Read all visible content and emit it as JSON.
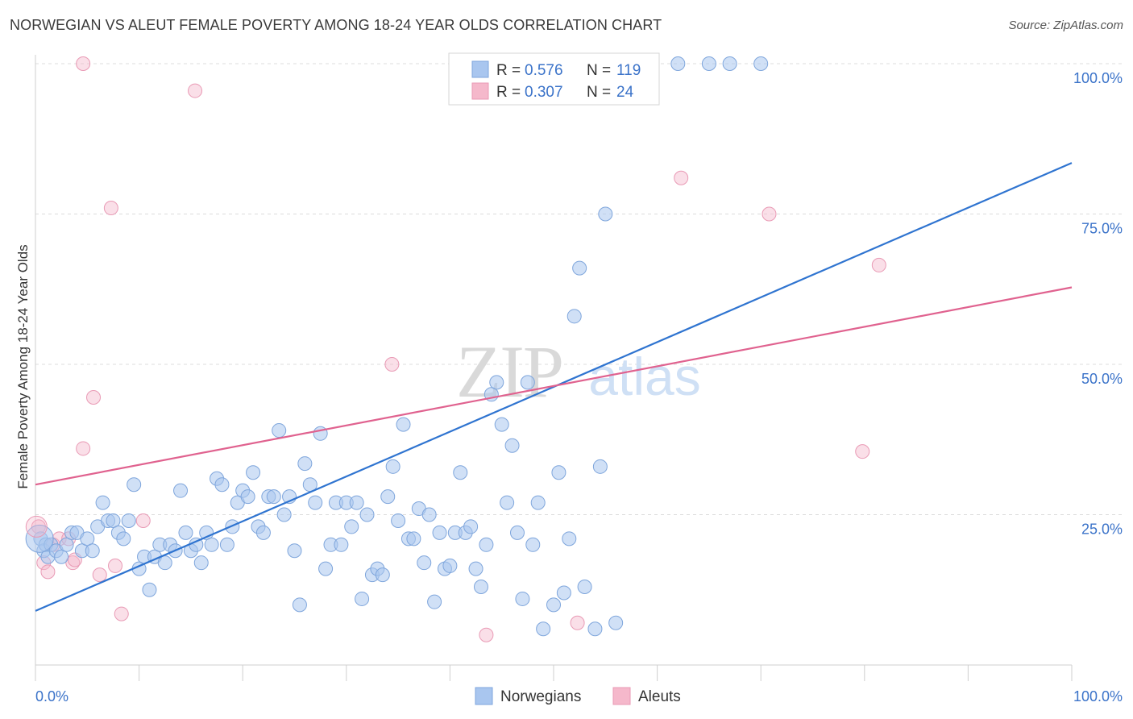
{
  "title": "NORWEGIAN VS ALEUT FEMALE POVERTY AMONG 18-24 YEAR OLDS CORRELATION CHART",
  "source": "Source: ZipAtlas.com",
  "watermark": {
    "zip": "ZIP",
    "atlas": "atlas"
  },
  "chart_data": {
    "type": "scatter",
    "ylabel": "Female Poverty Among 18-24 Year Olds",
    "xlim": [
      0,
      100
    ],
    "ylim": [
      0,
      100
    ],
    "x_tick_labels": [
      "0.0%",
      "100.0%"
    ],
    "y_ticks": [
      25,
      50,
      75,
      100
    ],
    "y_tick_labels": [
      "25.0%",
      "50.0%",
      "75.0%",
      "100.0%"
    ],
    "grid": true,
    "legend_position": "top-center",
    "colors": {
      "norwegians": "#a9c6ef",
      "norwegians_line": "#2f74d0",
      "aleuts": "#f5b8cb",
      "aleuts_line": "#e0628f",
      "accent_text": "#3b73c9"
    },
    "series": [
      {
        "name": "Norwegians",
        "R": "0.576",
        "N": "119",
        "trendline": {
          "x": [
            0,
            100
          ],
          "y": [
            9.0,
            83.5
          ]
        },
        "points": [
          [
            0.5,
            21
          ],
          [
            0.8,
            19
          ],
          [
            1.0,
            20
          ],
          [
            1.2,
            18
          ],
          [
            1.5,
            20
          ],
          [
            2,
            19
          ],
          [
            2.5,
            18
          ],
          [
            3,
            20
          ],
          [
            3.5,
            22
          ],
          [
            4,
            22
          ],
          [
            4.5,
            19
          ],
          [
            5,
            21
          ],
          [
            5.5,
            19
          ],
          [
            6,
            23
          ],
          [
            6.5,
            27
          ],
          [
            7,
            24
          ],
          [
            7.5,
            24
          ],
          [
            8,
            22
          ],
          [
            8.5,
            21
          ],
          [
            9,
            24
          ],
          [
            9.5,
            30
          ],
          [
            10,
            16
          ],
          [
            10.5,
            18
          ],
          [
            11,
            12.5
          ],
          [
            11.5,
            18
          ],
          [
            12,
            20
          ],
          [
            12.5,
            17
          ],
          [
            13,
            20
          ],
          [
            13.5,
            19
          ],
          [
            14,
            29
          ],
          [
            14.5,
            22
          ],
          [
            15,
            19
          ],
          [
            15.5,
            20
          ],
          [
            16,
            17
          ],
          [
            16.5,
            22
          ],
          [
            17,
            20
          ],
          [
            17.5,
            31
          ],
          [
            18,
            30
          ],
          [
            18.5,
            20
          ],
          [
            19,
            23
          ],
          [
            19.5,
            27
          ],
          [
            20,
            29
          ],
          [
            20.5,
            28
          ],
          [
            21,
            32
          ],
          [
            21.5,
            23
          ],
          [
            22,
            22
          ],
          [
            22.5,
            28
          ],
          [
            23,
            28
          ],
          [
            23.5,
            39
          ],
          [
            24,
            25
          ],
          [
            24.5,
            28
          ],
          [
            25,
            19
          ],
          [
            25.5,
            10
          ],
          [
            26,
            33.5
          ],
          [
            26.5,
            30
          ],
          [
            27,
            27
          ],
          [
            27.5,
            38.5
          ],
          [
            28,
            16
          ],
          [
            28.5,
            20
          ],
          [
            29,
            27
          ],
          [
            29.5,
            20
          ],
          [
            30,
            27
          ],
          [
            30.5,
            23
          ],
          [
            31,
            27
          ],
          [
            31.5,
            11
          ],
          [
            32,
            25
          ],
          [
            32.5,
            15
          ],
          [
            33,
            16
          ],
          [
            33.5,
            15
          ],
          [
            34,
            28
          ],
          [
            34.5,
            33
          ],
          [
            35,
            24
          ],
          [
            35.5,
            40
          ],
          [
            36,
            21
          ],
          [
            36.5,
            21
          ],
          [
            37,
            26
          ],
          [
            37.5,
            17
          ],
          [
            38,
            25
          ],
          [
            38.5,
            10.5
          ],
          [
            39,
            22
          ],
          [
            39.5,
            16
          ],
          [
            40,
            16.5
          ],
          [
            40.5,
            22
          ],
          [
            41,
            32
          ],
          [
            41.5,
            22
          ],
          [
            42,
            23
          ],
          [
            42.5,
            16
          ],
          [
            43,
            13
          ],
          [
            43.5,
            20
          ],
          [
            44,
            45
          ],
          [
            44.5,
            47
          ],
          [
            45,
            40
          ],
          [
            45.5,
            27
          ],
          [
            46,
            36.5
          ],
          [
            46.5,
            22
          ],
          [
            47,
            11
          ],
          [
            47.5,
            47
          ],
          [
            48,
            20
          ],
          [
            48.5,
            27
          ],
          [
            49,
            6
          ],
          [
            50,
            10
          ],
          [
            50.5,
            32
          ],
          [
            51,
            12
          ],
          [
            51.5,
            21
          ],
          [
            52,
            58
          ],
          [
            52.5,
            66
          ],
          [
            53,
            13
          ],
          [
            54,
            6
          ],
          [
            54.5,
            33
          ],
          [
            55,
            75
          ],
          [
            56,
            7
          ],
          [
            44.5,
            100
          ],
          [
            43,
            100
          ],
          [
            57,
            100
          ],
          [
            58,
            100
          ],
          [
            62,
            100
          ],
          [
            65,
            100
          ],
          [
            67,
            100
          ],
          [
            70,
            100
          ]
        ]
      },
      {
        "name": "Aleuts",
        "R": "0.307",
        "N": "24",
        "trendline": {
          "x": [
            0,
            100
          ],
          "y": [
            30.0,
            62.8
          ]
        },
        "points": [
          [
            0.3,
            23
          ],
          [
            0.8,
            17
          ],
          [
            1.2,
            15.5
          ],
          [
            1.7,
            20
          ],
          [
            2.3,
            21
          ],
          [
            3.2,
            21
          ],
          [
            3.6,
            17
          ],
          [
            3.8,
            17.5
          ],
          [
            4.6,
            100
          ],
          [
            5.6,
            44.5
          ],
          [
            4.6,
            36
          ],
          [
            6.2,
            15
          ],
          [
            7.3,
            76
          ],
          [
            7.7,
            16.5
          ],
          [
            8.3,
            8.5
          ],
          [
            10.4,
            24
          ],
          [
            15.4,
            95.5
          ],
          [
            34.4,
            50
          ],
          [
            43.5,
            5
          ],
          [
            52.3,
            7
          ],
          [
            62.3,
            81
          ],
          [
            70.8,
            75
          ],
          [
            81.4,
            66.5
          ],
          [
            79.8,
            35.5
          ]
        ]
      }
    ]
  }
}
